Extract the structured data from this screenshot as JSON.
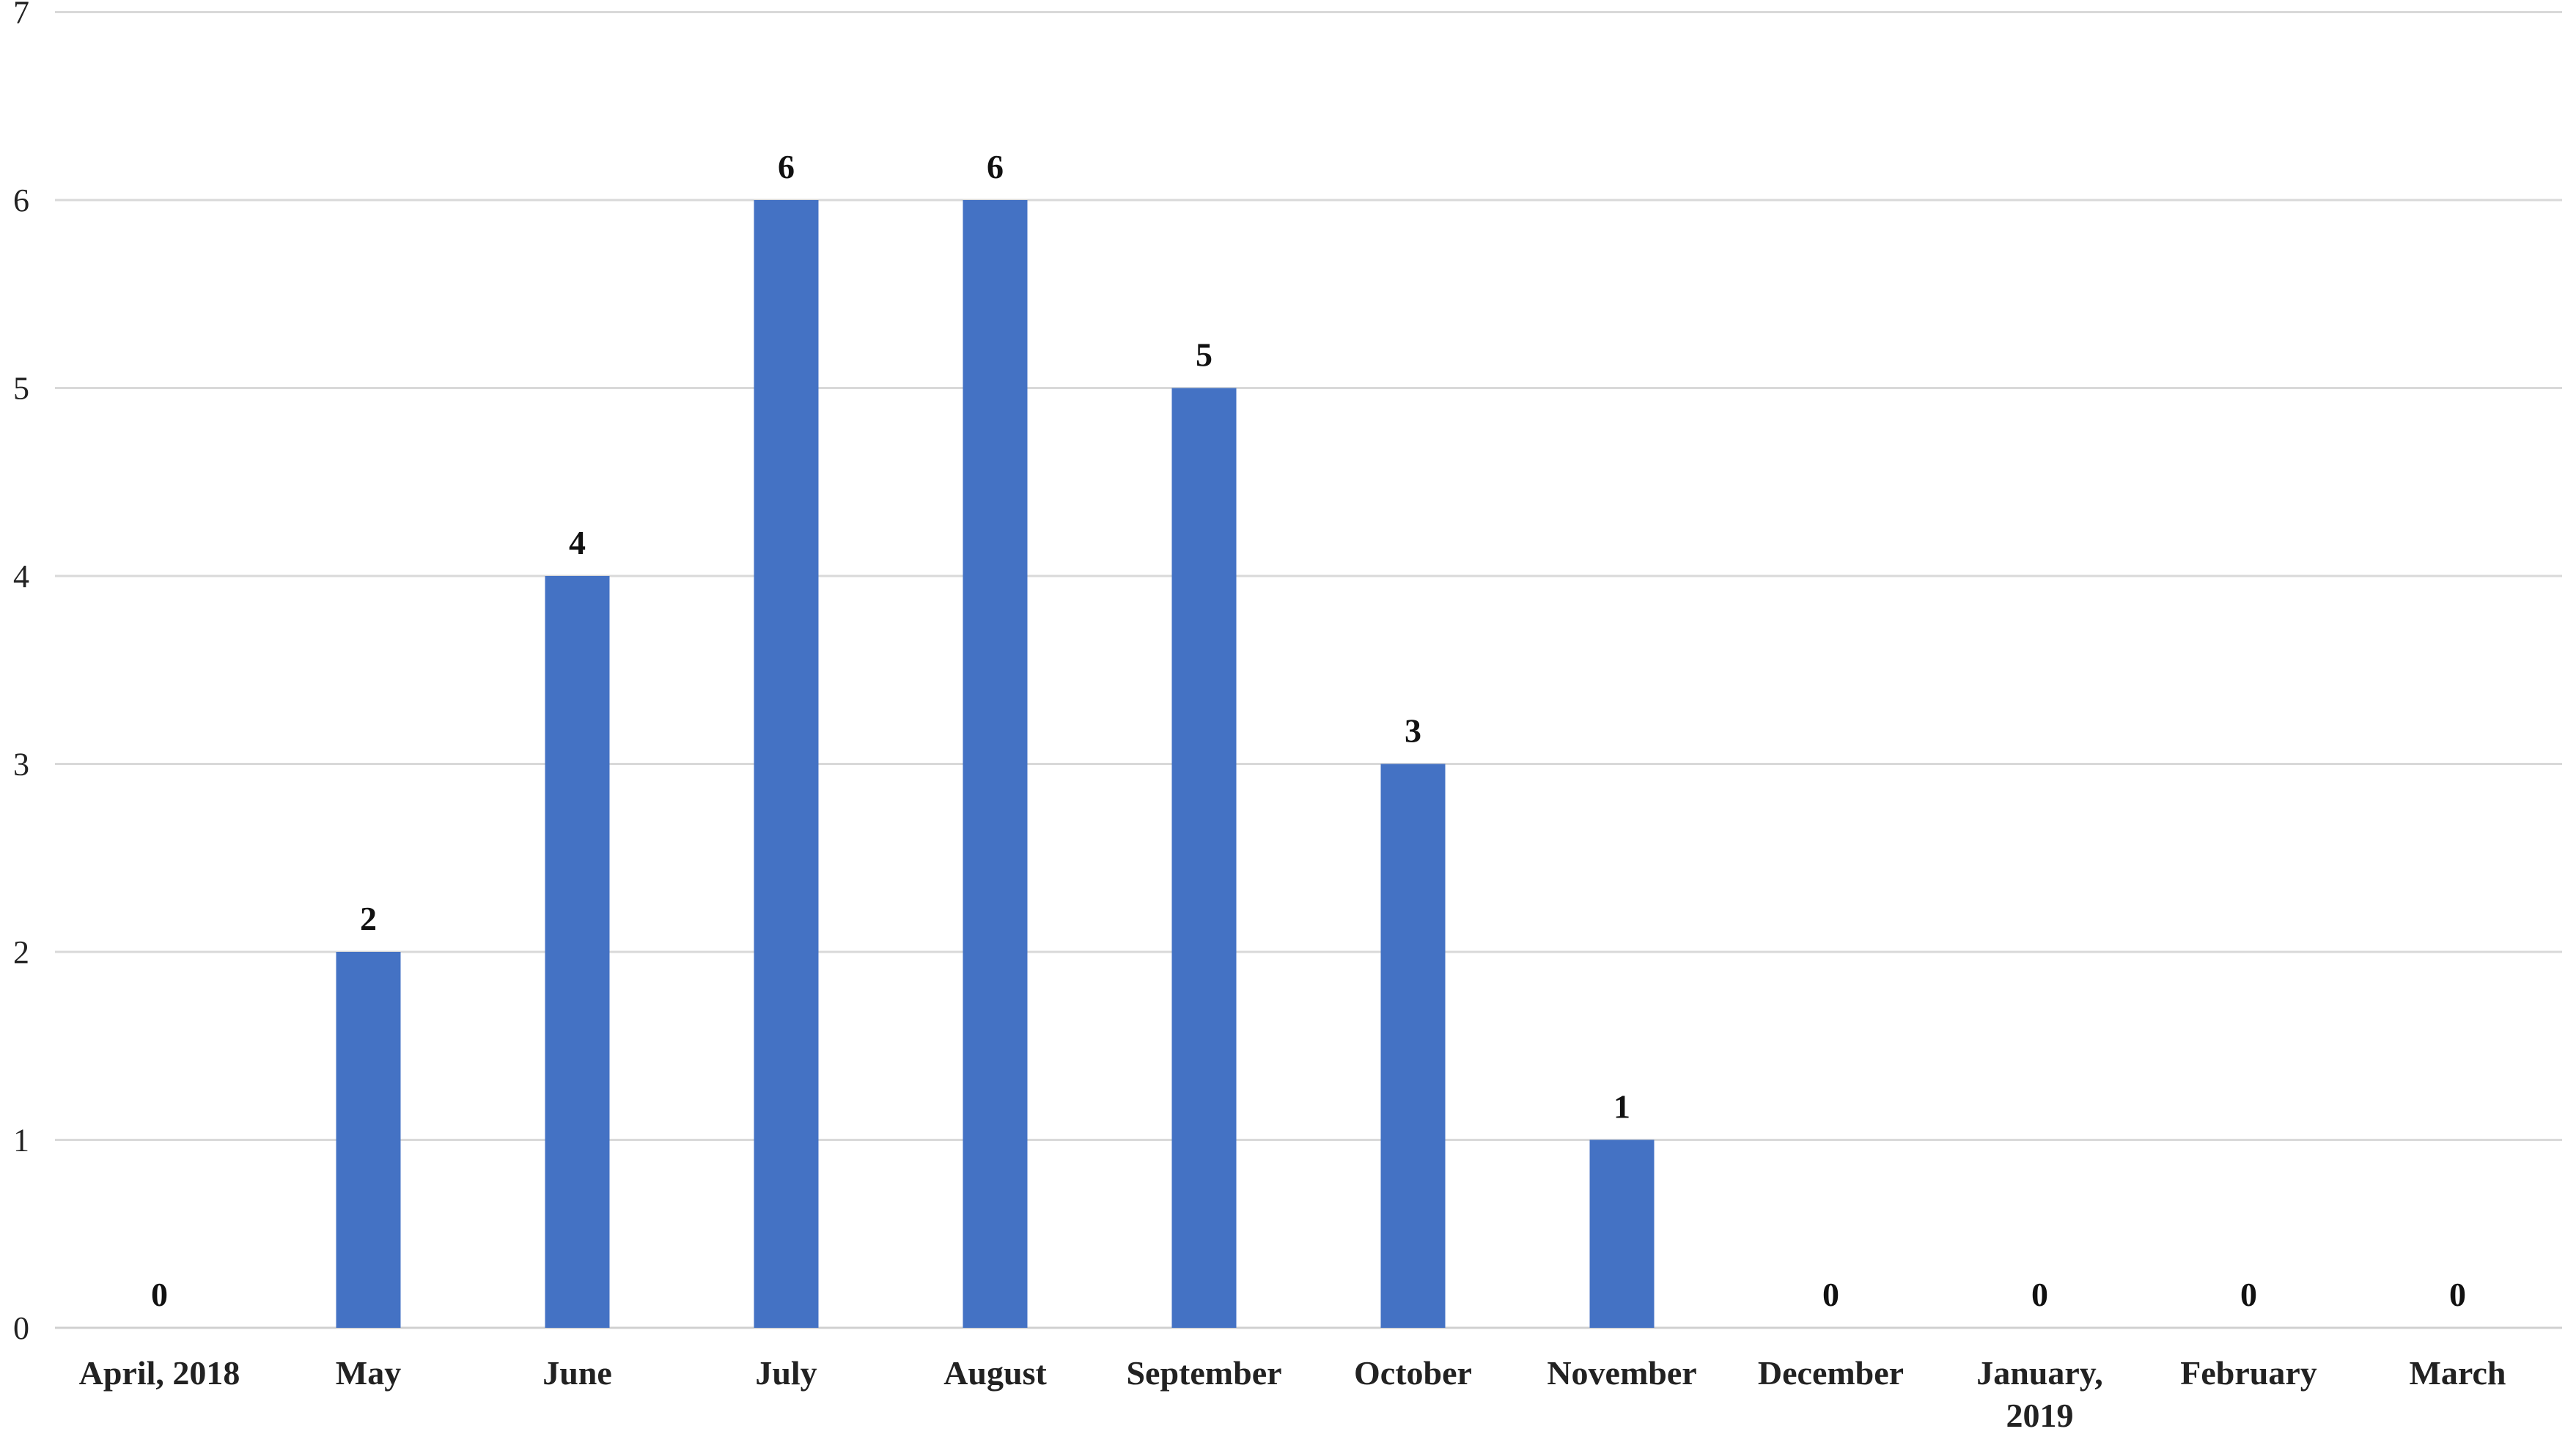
{
  "chart_data": {
    "type": "bar",
    "title": "",
    "xlabel": "",
    "ylabel": "",
    "categories": [
      [
        "April, 2018"
      ],
      [
        "May"
      ],
      [
        "June"
      ],
      [
        "July"
      ],
      [
        "August"
      ],
      [
        "September"
      ],
      [
        "October"
      ],
      [
        "November"
      ],
      [
        "December"
      ],
      [
        "January,",
        "2019"
      ],
      [
        "February"
      ],
      [
        "March"
      ]
    ],
    "values": [
      0,
      2,
      4,
      6,
      6,
      5,
      3,
      1,
      0,
      0,
      0,
      0
    ],
    "ylim": [
      0,
      7
    ],
    "yticks": [
      "0",
      "1",
      "2",
      "3",
      "4",
      "5",
      "6",
      "7"
    ],
    "grid": true,
    "legend": "none",
    "bar_color": "#4472c4",
    "data_labels": true
  }
}
